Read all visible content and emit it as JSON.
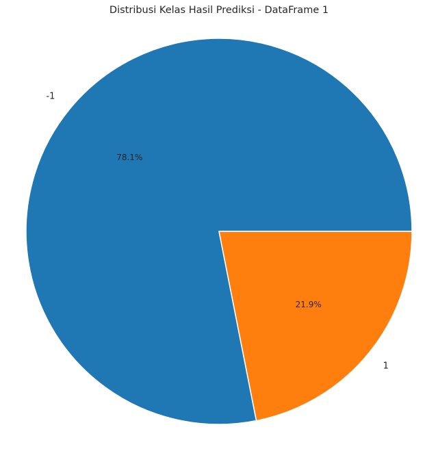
{
  "chart_data": {
    "type": "pie",
    "title": "Distribusi Kelas Hasil Prediksi - DataFrame 1",
    "categories": [
      "-1",
      "1"
    ],
    "values": [
      78.1,
      21.9
    ],
    "percent_labels": [
      "78.1%",
      "21.9%"
    ],
    "colors": [
      "#1f77b4",
      "#ff7f0e"
    ],
    "start_angle_deg": 0,
    "direction": "counterclockwise",
    "legend": "none"
  }
}
